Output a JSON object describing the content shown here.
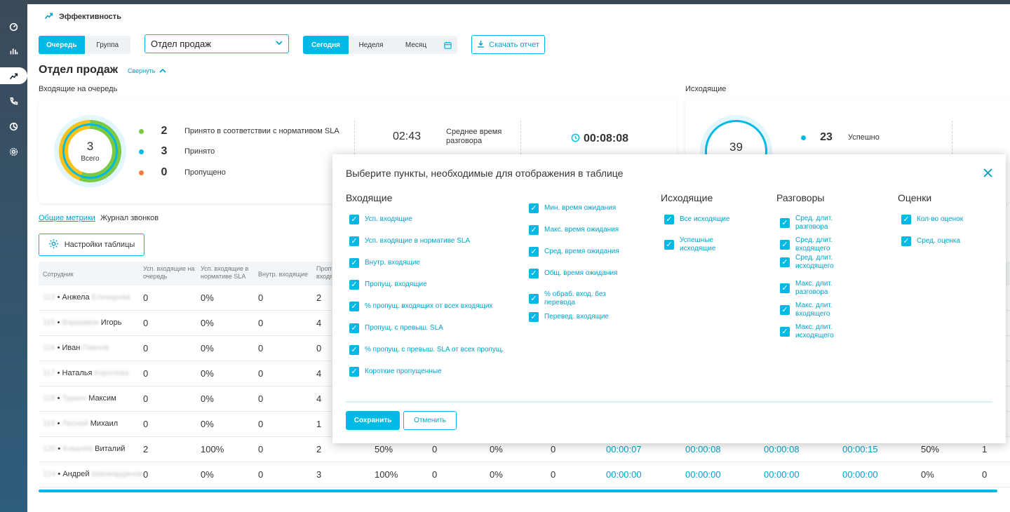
{
  "header": {
    "title": "Эффективность"
  },
  "controls": {
    "scope_tabs": [
      "Очередь",
      "Группа"
    ],
    "scope_selected": "Очередь",
    "queue_select": "Отдел продаж",
    "period_tabs": [
      "Сегодня",
      "Неделя",
      "Месяц"
    ],
    "period_selected": "Сегодня",
    "download_label": "Скачать отчет"
  },
  "section": {
    "title": "Отдел продаж",
    "collapse_label": "Свернуть",
    "incoming_label": "Входящие на очередь",
    "outgoing_label": "Исходящие"
  },
  "incoming": {
    "total_value": "3",
    "total_label": "Всего",
    "stats": [
      {
        "value": "2",
        "label": "Принято в соответствии с нормативом SLA",
        "color": "#7ac943"
      },
      {
        "value": "3",
        "label": "Принято",
        "color": "#00b9e4"
      },
      {
        "value": "0",
        "label": "Пропущено",
        "color": "#f47b3a"
      }
    ],
    "avg_talk_value": "02:43",
    "avg_talk_label": "Среднее время разговора",
    "total_time_value": "00:08:08"
  },
  "outgoing": {
    "total_value": "39",
    "stats": [
      {
        "value": "23",
        "label": "Успешно",
        "color": "#00b9e4"
      }
    ]
  },
  "tabs": [
    "Общие метрики",
    "Журнал звонков"
  ],
  "table_settings_label": "Настройки таблицы",
  "table": {
    "headers": [
      "Сотрудник",
      "Усп. входящие на очередь",
      "Усп. входящие в нормативе SLA",
      "Внутр. входящие",
      "Пропу… входя…"
    ],
    "rows": [
      {
        "ext": "113",
        "first": "Анжела",
        "last": "Елизарова",
        "name_order": "first-last",
        "c": [
          "0",
          "0%",
          "0",
          "2"
        ],
        "tail": []
      },
      {
        "ext": "115",
        "first": "Игорь",
        "last": "Варшавов",
        "name_order": "last-first",
        "c": [
          "0",
          "0%",
          "0",
          "4"
        ],
        "tail": []
      },
      {
        "ext": "116",
        "first": "Иван",
        "last": "Павлов",
        "name_order": "first-last",
        "c": [
          "0",
          "0%",
          "0",
          "0"
        ],
        "tail": []
      },
      {
        "ext": "117",
        "first": "Наталья",
        "last": "Королева",
        "name_order": "first-last",
        "c": [
          "0",
          "0%",
          "0",
          "4"
        ],
        "tail": []
      },
      {
        "ext": "118",
        "first": "Максим",
        "last": "Туркин",
        "name_order": "last-first",
        "c": [
          "0",
          "0%",
          "0",
          "4"
        ],
        "tail": []
      },
      {
        "ext": "119",
        "first": "Михаил",
        "last": "Лесной",
        "name_order": "last-first",
        "c": [
          "0",
          "0%",
          "0",
          "1"
        ],
        "tail": []
      },
      {
        "ext": "120",
        "first": "Виталий",
        "last": "Ковалёв",
        "name_order": "last-first",
        "c": [
          "2",
          "100%",
          "0",
          "2"
        ],
        "tail": [
          "50%",
          "0",
          "0%",
          "0",
          "00:00:07",
          "00:00:08",
          "00:00:08",
          "00:00:15",
          "50%",
          "1"
        ]
      },
      {
        "ext": "124",
        "first": "Андрей",
        "last": "Шахмарданов",
        "name_order": "first-last",
        "c": [
          "0",
          "0%",
          "0",
          "3"
        ],
        "tail": [
          "100%",
          "0",
          "0%",
          "0",
          "00:00:00",
          "00:00:00",
          "00:00:00",
          "00:00:00",
          "0%",
          "0"
        ]
      }
    ]
  },
  "modal": {
    "title": "Выберите пункты, необходимые для отображения в таблице",
    "columns": [
      {
        "head": "Входящие",
        "items": [
          "Усп. входящие",
          "Усп. входящие в нормативе SLA",
          "Внутр. входящие",
          "Пропущ. входящие",
          "% пропущ. входящих от всех входящих",
          "Пропущ. с превыш. SLA",
          "% пропущ. с превыш. SLA от всех пропущ.",
          "Короткие пропущенные"
        ]
      },
      {
        "head": "",
        "items": [
          "Мин. время ожидания",
          "Макс. время ожидания",
          "Сред. время ожидания",
          "Общ. время ожидания",
          "% обраб. вход. без перевода",
          "Перевед. входящие"
        ]
      },
      {
        "head": "Исходящие",
        "items": [
          "Все исходящие",
          "Успешные исходящие"
        ]
      },
      {
        "head": "Разговоры",
        "items": [
          "Сред. длит. разговора",
          "Сред. длит. входящего",
          "Сред. длит. исходящего",
          "Макс. длит. разговора",
          "Макс. длит. входящего",
          "Макс. длит. исходящего"
        ]
      },
      {
        "head": "Оценки",
        "items": [
          "Кол-во оценок",
          "Сред. оценка"
        ]
      }
    ],
    "save_label": "Сохранить",
    "cancel_label": "Отменить"
  },
  "colors": {
    "accent": "#00b9e4",
    "green": "#7ac943",
    "yellow": "#f9c21a",
    "orange": "#f47b3a"
  }
}
